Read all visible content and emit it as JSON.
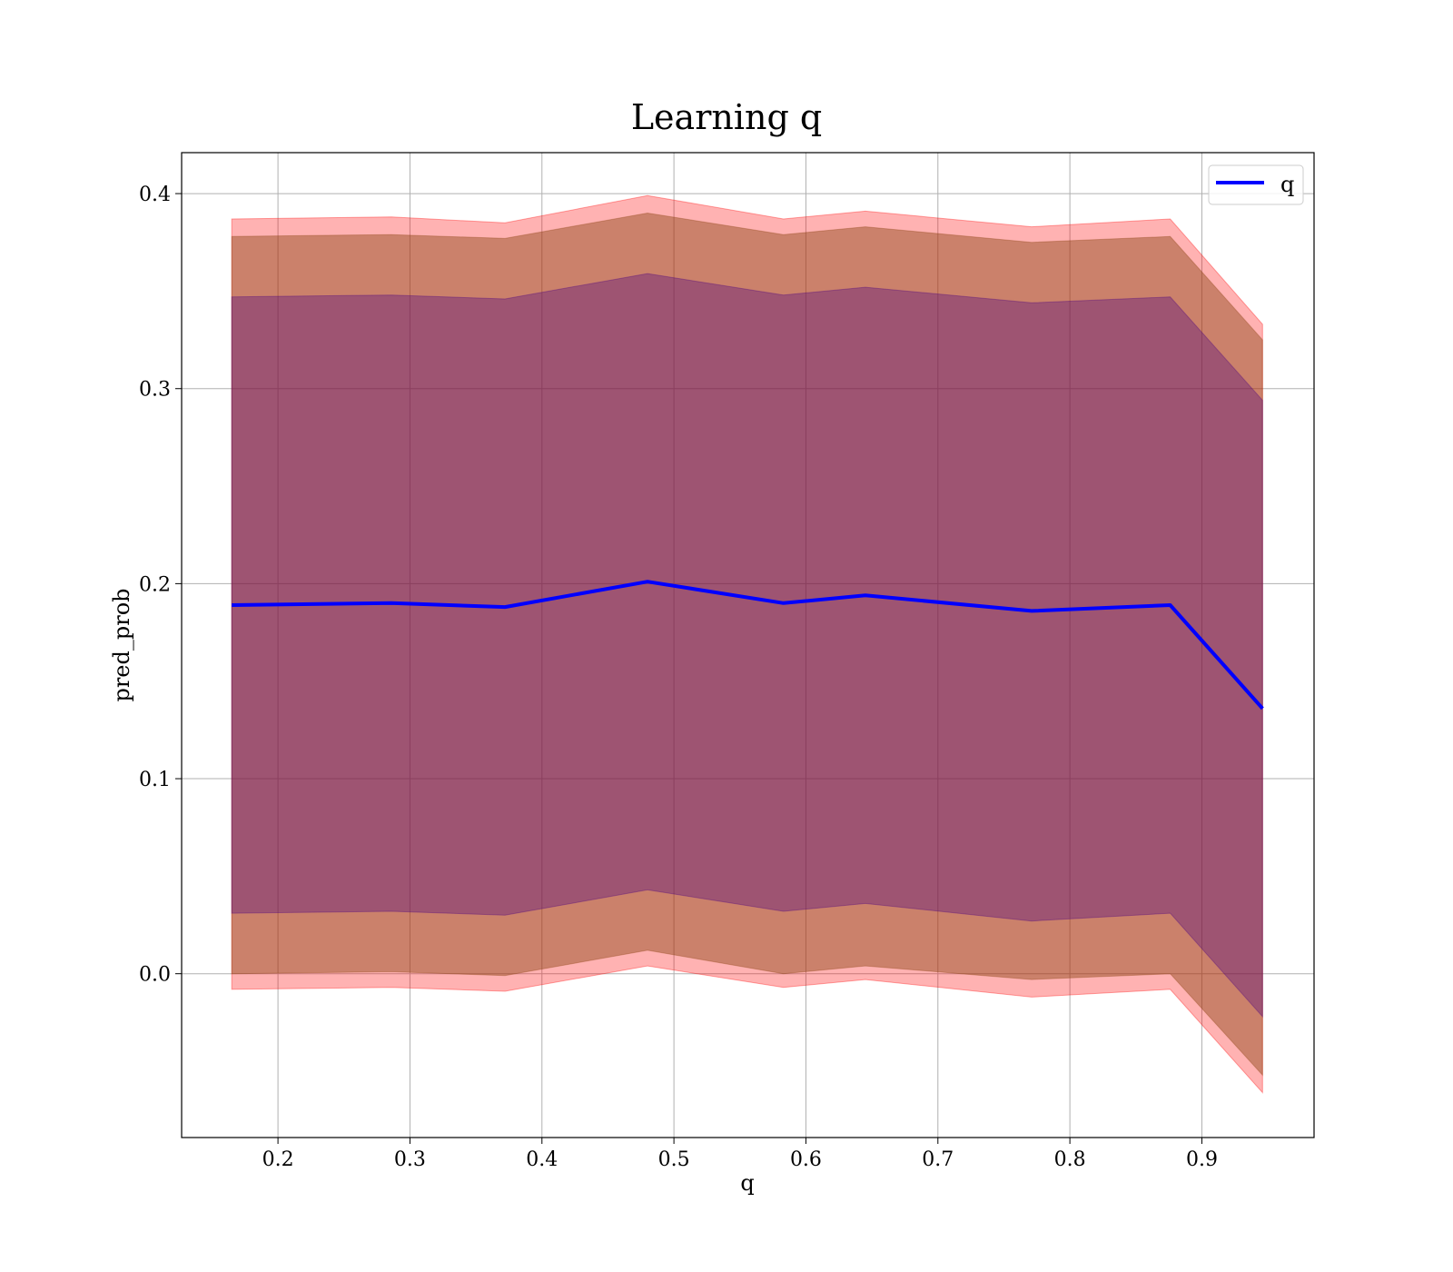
{
  "chart_data": {
    "type": "line",
    "title": "Learning q",
    "xlabel": "q",
    "ylabel": "pred_prob",
    "xlim": [
      0.127,
      0.985
    ],
    "ylim": [
      -0.084,
      0.421
    ],
    "x_ticks": [
      0.2,
      0.3,
      0.4,
      0.5,
      0.6,
      0.7,
      0.8,
      0.9
    ],
    "x_tick_labels": [
      "0.2",
      "0.3",
      "0.4",
      "0.5",
      "0.6",
      "0.7",
      "0.8",
      "0.9"
    ],
    "y_ticks": [
      0.0,
      0.1,
      0.2,
      0.3,
      0.4
    ],
    "y_tick_labels": [
      "0.0",
      "0.1",
      "0.2",
      "0.3",
      "0.4"
    ],
    "grid": true,
    "legend": {
      "position": "top-right",
      "entries": [
        "q"
      ]
    },
    "x": [
      0.165,
      0.286,
      0.372,
      0.48,
      0.583,
      0.645,
      0.771,
      0.876,
      0.946
    ],
    "series": [
      {
        "name": "q",
        "color": "#0000ff",
        "values": [
          0.189,
          0.19,
          0.188,
          0.201,
          0.19,
          0.194,
          0.186,
          0.189,
          0.136
        ]
      }
    ],
    "bands": [
      {
        "color": "#ff0000",
        "opacity": 0.3,
        "upper": [
          0.387,
          0.388,
          0.385,
          0.399,
          0.387,
          0.391,
          0.383,
          0.387,
          0.333
        ],
        "lower": [
          -0.008,
          -0.007,
          -0.009,
          0.004,
          -0.007,
          -0.003,
          -0.012,
          -0.008,
          -0.061
        ]
      },
      {
        "color": "#8b4513",
        "opacity": 0.45,
        "upper": [
          0.378,
          0.379,
          0.377,
          0.39,
          0.379,
          0.383,
          0.375,
          0.378,
          0.325
        ],
        "lower": [
          0.0,
          0.001,
          -0.001,
          0.012,
          0.0,
          0.004,
          -0.003,
          0.0,
          -0.052
        ]
      },
      {
        "color": "#4b0082",
        "opacity": 0.35,
        "upper": [
          0.347,
          0.348,
          0.346,
          0.359,
          0.348,
          0.352,
          0.344,
          0.347,
          0.294
        ],
        "lower": [
          0.031,
          0.032,
          0.03,
          0.043,
          0.032,
          0.036,
          0.027,
          0.031,
          -0.022
        ]
      }
    ]
  }
}
